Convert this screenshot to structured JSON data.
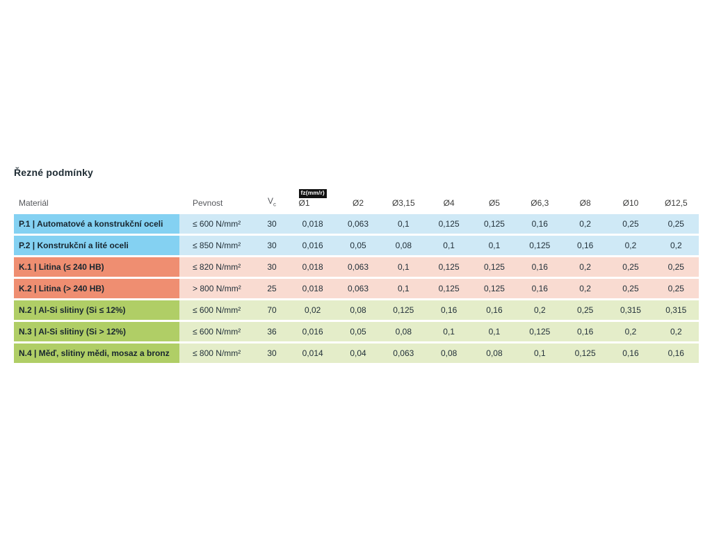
{
  "colors": {
    "group_p_label_bg": "#84d1f2",
    "group_p_row_bg": "#cfe9f6",
    "group_k_label_bg": "#ef8e71",
    "group_k_row_bg": "#f9dbd1",
    "group_n_label_bg": "#b0ce66",
    "group_n_row_bg": "#e4edc9",
    "feed_badge_bg": "#111111",
    "feed_badge_text": "#ffffff"
  },
  "chart_data": {
    "type": "table",
    "title": "Řezné podmínky",
    "header": {
      "material": "Materiál",
      "strength": "Pevnost",
      "vc_base": "V",
      "vc_sub": "c",
      "feed_badge": "fz(mm/r)",
      "diameters": [
        "Ø1",
        "Ø2",
        "Ø3,15",
        "Ø4",
        "Ø5",
        "Ø6,3",
        "Ø8",
        "Ø10",
        "Ø12,5"
      ]
    },
    "rows": [
      {
        "group": "P",
        "material": "P.1 | Automatové a konstrukční oceli",
        "strength": "≤ 600 N/mm²",
        "vc": "30",
        "feeds": [
          "0,018",
          "0,063",
          "0,1",
          "0,125",
          "0,125",
          "0,16",
          "0,2",
          "0,25",
          "0,25"
        ]
      },
      {
        "group": "P",
        "material": "P.2 | Konstrukční a lité oceli",
        "strength": "≤ 850 N/mm²",
        "vc": "30",
        "feeds": [
          "0,016",
          "0,05",
          "0,08",
          "0,1",
          "0,1",
          "0,125",
          "0,16",
          "0,2",
          "0,2"
        ]
      },
      {
        "group": "K",
        "material": "K.1 | Litina (≤ 240 HB)",
        "strength": "≤ 820 N/mm²",
        "vc": "30",
        "feeds": [
          "0,018",
          "0,063",
          "0,1",
          "0,125",
          "0,125",
          "0,16",
          "0,2",
          "0,25",
          "0,25"
        ]
      },
      {
        "group": "K",
        "material": "K.2 | Litina (> 240 HB)",
        "strength": "> 800 N/mm²",
        "vc": "25",
        "feeds": [
          "0,018",
          "0,063",
          "0,1",
          "0,125",
          "0,125",
          "0,16",
          "0,2",
          "0,25",
          "0,25"
        ]
      },
      {
        "group": "N",
        "material": "N.2 | Al-Si slitiny (Si ≤ 12%)",
        "strength": "≤ 600 N/mm²",
        "vc": "70",
        "feeds": [
          "0,02",
          "0,08",
          "0,125",
          "0,16",
          "0,16",
          "0,2",
          "0,25",
          "0,315",
          "0,315"
        ]
      },
      {
        "group": "N",
        "material": "N.3 | Al-Si slitiny (Si > 12%)",
        "strength": "≤ 600 N/mm²",
        "vc": "36",
        "feeds": [
          "0,016",
          "0,05",
          "0,08",
          "0,1",
          "0,1",
          "0,125",
          "0,16",
          "0,2",
          "0,2"
        ]
      },
      {
        "group": "N",
        "material": "N.4 | Měď, slitiny mědi, mosaz a bronz",
        "strength": "≤ 800 N/mm²",
        "vc": "30",
        "feeds": [
          "0,014",
          "0,04",
          "0,063",
          "0,08",
          "0,08",
          "0,1",
          "0,125",
          "0,16",
          "0,16"
        ]
      }
    ]
  }
}
